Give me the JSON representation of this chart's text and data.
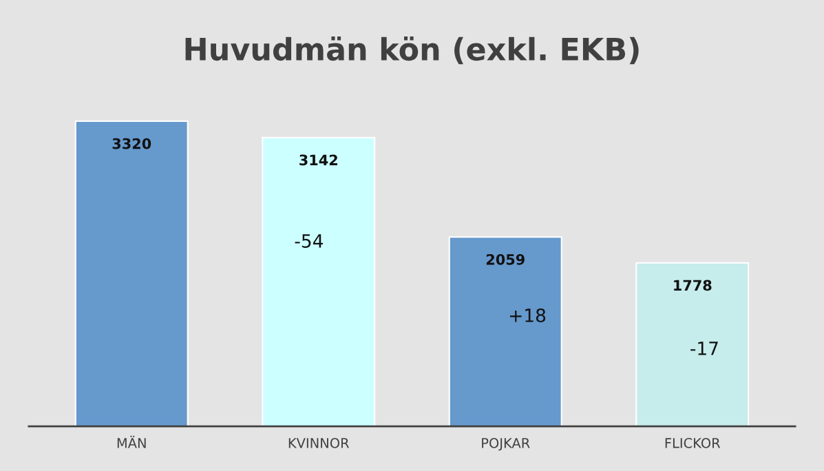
{
  "chart_data": {
    "type": "bar",
    "title": "Huvudmän kön (exkl. EKB)",
    "categories": [
      "MÄN",
      "KVINNOR",
      "POJKAR",
      "FLICKOR"
    ],
    "values": [
      3320,
      3142,
      2059,
      1778
    ],
    "colors": [
      "#6699cc",
      "#ccffff",
      "#6699cc",
      "#c6ecec"
    ],
    "data_labels": true,
    "annotations": [
      "-54",
      "+18",
      "-17"
    ]
  }
}
